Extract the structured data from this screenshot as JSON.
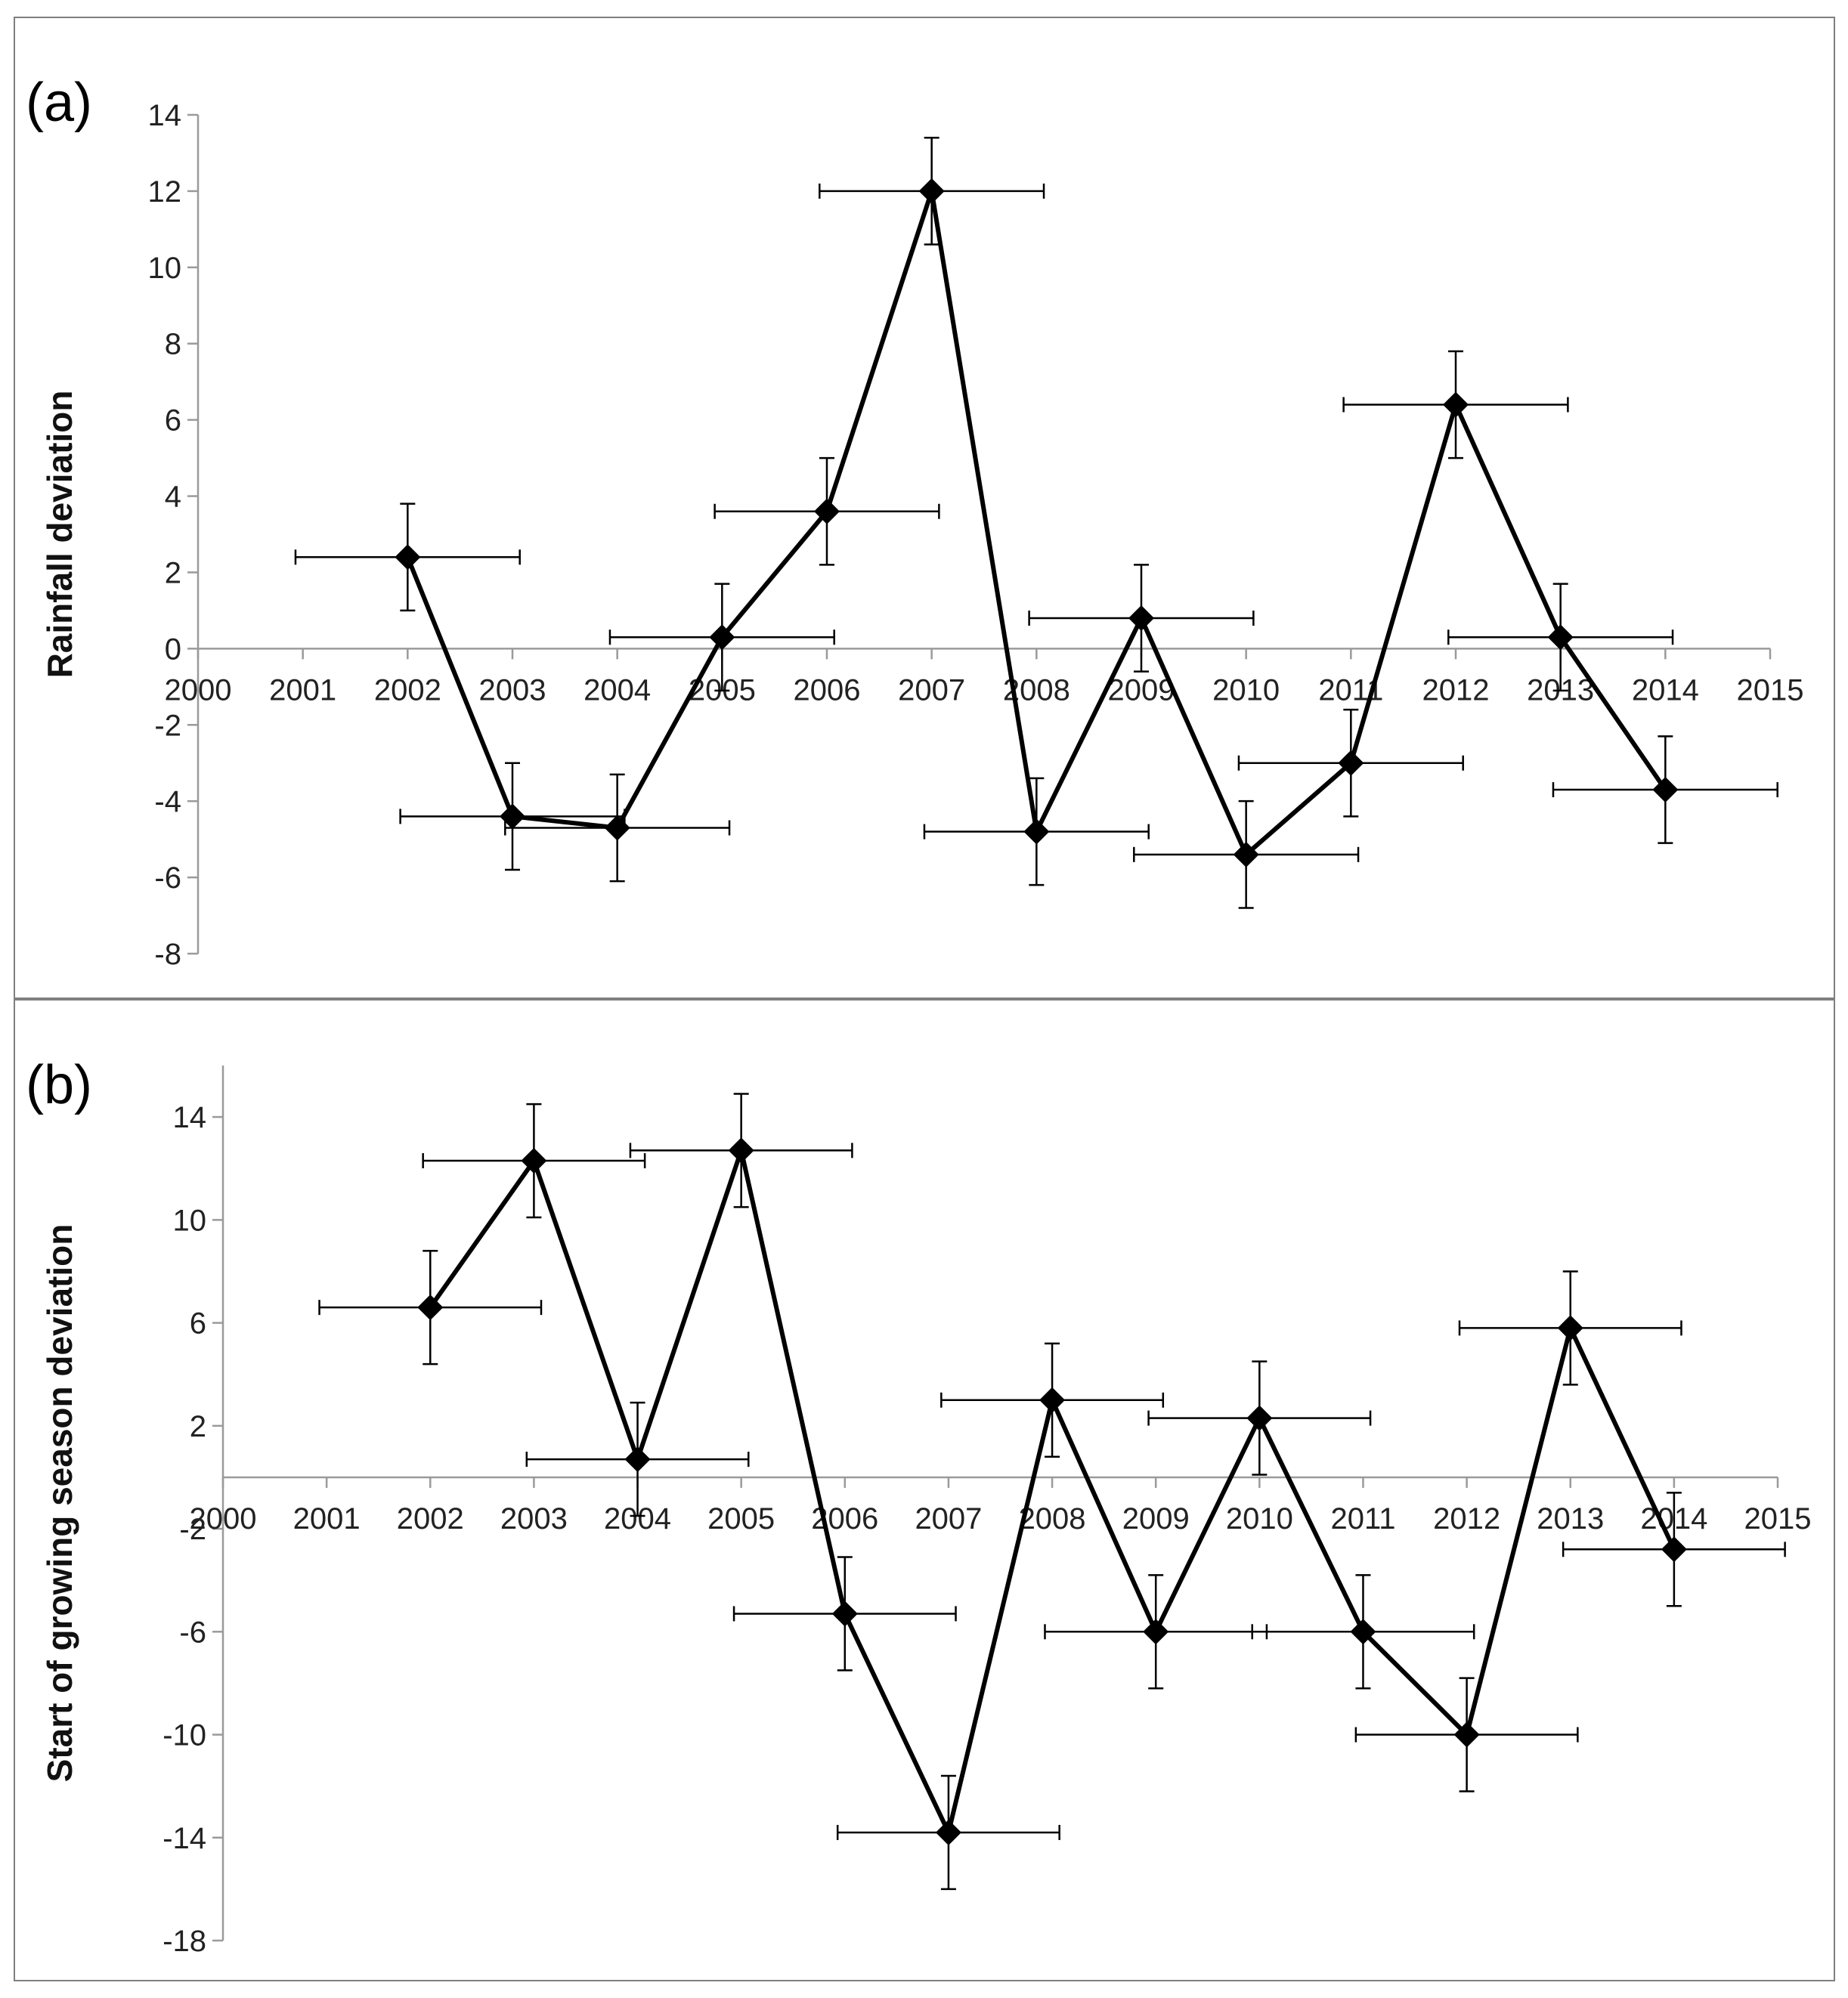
{
  "chart_data": [
    {
      "type": "line",
      "panel_label": "(a)",
      "title": "",
      "xlabel": "",
      "ylabel": "Rainfall deviation",
      "x_ticks": [
        "2000",
        "2001",
        "2002",
        "2003",
        "2004",
        "2005",
        "2006",
        "2007",
        "2008",
        "2009",
        "2010",
        "2011",
        "2012",
        "2013",
        "2014",
        "2015"
      ],
      "y_ticks": [
        "-8",
        "-6",
        "-4",
        "-2",
        "0",
        "2",
        "4",
        "6",
        "8",
        "10",
        "12",
        "14"
      ],
      "xlim": [
        2000,
        2015
      ],
      "ylim": [
        -8,
        14
      ],
      "grid": false,
      "series": [
        {
          "name": "Rainfall deviation",
          "x": [
            2002,
            2003,
            2004,
            2005,
            2006,
            2007,
            2008,
            2009,
            2010,
            2011,
            2012,
            2013,
            2014
          ],
          "values": [
            2.4,
            -4.4,
            -4.7,
            0.3,
            3.6,
            12.0,
            -4.8,
            0.8,
            -5.4,
            -3.0,
            6.4,
            0.3,
            -3.7
          ],
          "y_error": 1.4,
          "x_error": 1.07
        }
      ]
    },
    {
      "type": "line",
      "panel_label": "(b)",
      "title": "",
      "xlabel": "",
      "ylabel": "Start of growing season deviation",
      "x_ticks": [
        "2000",
        "2001",
        "2002",
        "2003",
        "2004",
        "2005",
        "2006",
        "2007",
        "2008",
        "2009",
        "2010",
        "2011",
        "2012",
        "2013",
        "2014",
        "2015"
      ],
      "y_ticks": [
        "-18",
        "-14",
        "-10",
        "-6",
        "-2",
        "2",
        "6",
        "10",
        "14"
      ],
      "xlim": [
        2000,
        2015
      ],
      "ylim": [
        -18,
        16
      ],
      "grid": false,
      "series": [
        {
          "name": "Start of growing season deviation",
          "x": [
            2002,
            2003,
            2004,
            2005,
            2006,
            2007,
            2008,
            2009,
            2010,
            2011,
            2012,
            2013,
            2014
          ],
          "values": [
            6.6,
            12.3,
            0.7,
            12.7,
            -5.3,
            -13.8,
            3.0,
            -6.0,
            2.3,
            -6.0,
            -10.0,
            5.8,
            -2.8
          ],
          "y_error": 2.2,
          "x_error": 1.07
        }
      ]
    }
  ]
}
